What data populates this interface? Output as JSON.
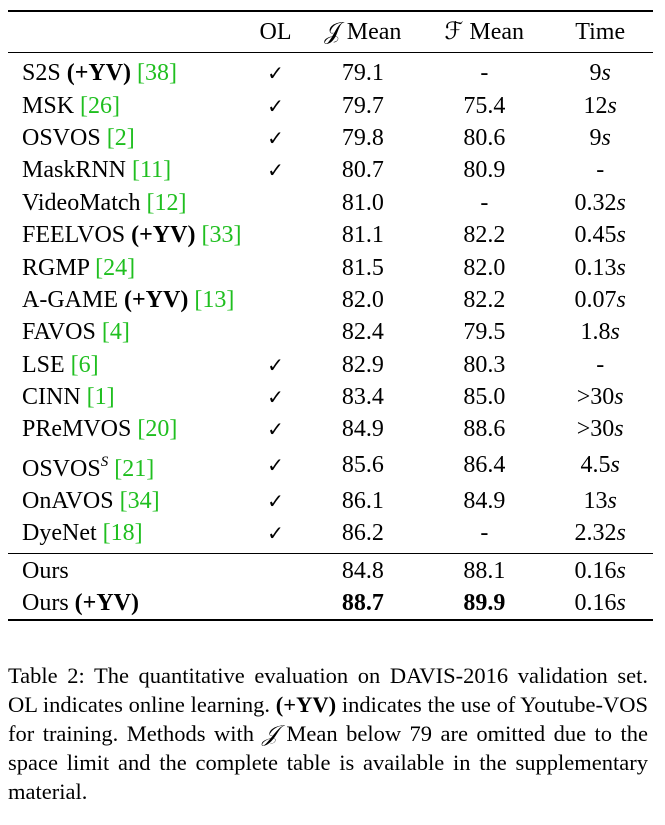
{
  "table": {
    "headers": {
      "method": "",
      "ol": "OL",
      "j_mean": "𝒥 Mean",
      "f_mean": "ℱ Mean",
      "time": "Time"
    },
    "rows": [
      {
        "name": "S2S",
        "bold_suffix": " (+YV)",
        "ref": "38",
        "ref_text": "[38]",
        "ol": "✓",
        "j": "79.1",
        "f": "-",
        "time": "9",
        "unit": "s"
      },
      {
        "name": "MSK",
        "bold_suffix": "",
        "ref_text": "[26]",
        "ol": "✓",
        "j": "79.7",
        "f": "75.4",
        "time": "12",
        "unit": "s"
      },
      {
        "name": "OSVOS",
        "bold_suffix": "",
        "ref_text": "[2]",
        "ol": "✓",
        "j": "79.8",
        "f": "80.6",
        "time": "9",
        "unit": "s"
      },
      {
        "name": "MaskRNN",
        "bold_suffix": "",
        "ref_text": "[11]",
        "ol": "✓",
        "j": "80.7",
        "f": "80.9",
        "time": "-",
        "unit": ""
      },
      {
        "name": "VideoMatch",
        "bold_suffix": "",
        "ref_text": "[12]",
        "ol": "",
        "j": "81.0",
        "f": "-",
        "time": "0.32",
        "unit": "s"
      },
      {
        "name": "FEELVOS",
        "bold_suffix": " (+YV)",
        "ref_text": "[33]",
        "ol": "",
        "j": "81.1",
        "f": "82.2",
        "time": "0.45",
        "unit": "s"
      },
      {
        "name": "RGMP",
        "bold_suffix": "",
        "ref_text": "[24]",
        "ol": "",
        "j": "81.5",
        "f": "82.0",
        "time": "0.13",
        "unit": "s"
      },
      {
        "name": "A-GAME",
        "bold_suffix": " (+YV)",
        "ref_text": "[13]",
        "ol": "",
        "j": "82.0",
        "f": "82.2",
        "time": "0.07",
        "unit": "s"
      },
      {
        "name": "FAVOS",
        "bold_suffix": "",
        "ref_text": "[4]",
        "ol": "",
        "j": "82.4",
        "f": "79.5",
        "time": "1.8",
        "unit": "s"
      },
      {
        "name": "LSE",
        "bold_suffix": "",
        "ref_text": "[6]",
        "ol": "✓",
        "j": "82.9",
        "f": "80.3",
        "time": "-",
        "unit": ""
      },
      {
        "name": "CINN",
        "bold_suffix": "",
        "ref_text": "[1]",
        "ol": "✓",
        "j": "83.4",
        "f": "85.0",
        "time": ">30",
        "unit": "s"
      },
      {
        "name": "PReMVOS",
        "bold_suffix": "",
        "ref_text": "[20]",
        "ol": "✓",
        "j": "84.9",
        "f": "88.6",
        "time": ">30",
        "unit": "s"
      },
      {
        "name": "OSVOS",
        "sup": "S",
        "bold_suffix": "",
        "ref_text": "[21]",
        "ol": "✓",
        "j": "85.6",
        "f": "86.4",
        "time": "4.5",
        "unit": "s"
      },
      {
        "name": "OnAVOS",
        "bold_suffix": "",
        "ref_text": "[34]",
        "ol": "✓",
        "j": "86.1",
        "f": "84.9",
        "time": "13",
        "unit": "s"
      },
      {
        "name": "DyeNet",
        "bold_suffix": "",
        "ref_text": "[18]",
        "ol": "✓",
        "j": "86.2",
        "f": "-",
        "time": "2.32",
        "unit": "s"
      }
    ],
    "ours": [
      {
        "name": "Ours",
        "bold_suffix": "",
        "ol": "",
        "j": "84.8",
        "f": "88.1",
        "time": "0.16",
        "unit": "s"
      },
      {
        "name": "Ours",
        "bold_suffix": " (+YV)",
        "ol": "",
        "j": "88.7",
        "f": "89.9",
        "time": "0.16",
        "unit": "s"
      }
    ]
  },
  "caption": {
    "part1": "Table 2: The quantitative evaluation on DAVIS-2016 validation set. OL indicates online learning. ",
    "bold": "(+YV)",
    "part2": " indicates the use of Youtube-VOS for training. Methods with ",
    "j_symbol": "𝒥",
    "part3": " Mean below 79 are omitted due to the space limit and the complete table is available in the supplementary material."
  },
  "colors": {
    "reference_link": "#1fbf1f",
    "text": "#000000"
  }
}
